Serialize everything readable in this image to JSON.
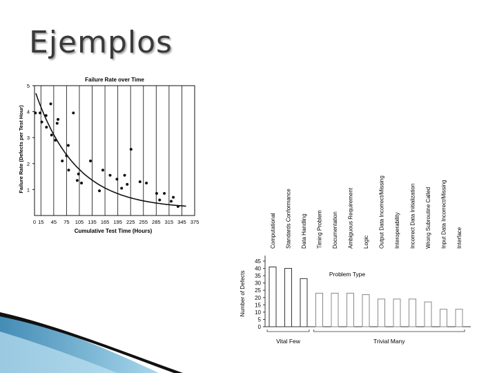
{
  "slide": {
    "title": "Ejemplos"
  },
  "chart_data": [
    {
      "type": "scatter",
      "title": "Failure Rate over Time",
      "xlabel": "Cumulative Test Time (Hours)",
      "ylabel": "Failure Rate (Defects per Test Hour)",
      "x_ticks": [
        "0",
        "15",
        "45",
        "75",
        "105",
        "135",
        "165",
        "195",
        "225",
        "255",
        "285",
        "315",
        "345",
        "375"
      ],
      "y_ticks": [
        "1",
        "2",
        "3",
        "4",
        "5"
      ],
      "xlim": [
        0,
        375
      ],
      "ylim": [
        0,
        5
      ],
      "points": [
        {
          "x": 2,
          "y": 3.95
        },
        {
          "x": 13,
          "y": 3.95
        },
        {
          "x": 17,
          "y": 3.6
        },
        {
          "x": 27,
          "y": 3.85
        },
        {
          "x": 28,
          "y": 3.4
        },
        {
          "x": 38,
          "y": 4.3
        },
        {
          "x": 40,
          "y": 3.1
        },
        {
          "x": 49,
          "y": 2.9
        },
        {
          "x": 53,
          "y": 3.55
        },
        {
          "x": 55,
          "y": 3.7
        },
        {
          "x": 65,
          "y": 2.1
        },
        {
          "x": 75,
          "y": 2.3
        },
        {
          "x": 79,
          "y": 2.7
        },
        {
          "x": 80,
          "y": 1.75
        },
        {
          "x": 91,
          "y": 3.95
        },
        {
          "x": 100,
          "y": 1.35
        },
        {
          "x": 103,
          "y": 1.6
        },
        {
          "x": 110,
          "y": 1.25
        },
        {
          "x": 131,
          "y": 2.1
        },
        {
          "x": 152,
          "y": 0.95
        },
        {
          "x": 160,
          "y": 1.75
        },
        {
          "x": 177,
          "y": 1.55
        },
        {
          "x": 193,
          "y": 1.4
        },
        {
          "x": 204,
          "y": 1.05
        },
        {
          "x": 211,
          "y": 1.55
        },
        {
          "x": 217,
          "y": 1.2
        },
        {
          "x": 226,
          "y": 2.55
        },
        {
          "x": 247,
          "y": 1.3
        },
        {
          "x": 262,
          "y": 1.25
        },
        {
          "x": 286,
          "y": 0.85
        },
        {
          "x": 293,
          "y": 0.6
        },
        {
          "x": 304,
          "y": 0.85
        },
        {
          "x": 320,
          "y": 0.55
        },
        {
          "x": 325,
          "y": 0.7
        },
        {
          "x": 336,
          "y": 0.35
        }
      ],
      "trend": "decreasing exponential curve",
      "vertical_gridlines_at": [
        15,
        45,
        75,
        105,
        135,
        165,
        195,
        225,
        255,
        285,
        315,
        345
      ]
    },
    {
      "type": "bar",
      "title": "Problem Type",
      "ylabel": "Number of Defects",
      "ylim": [
        0,
        45
      ],
      "y_ticks": [
        "0",
        "5",
        "10",
        "15",
        "20",
        "25",
        "30",
        "35",
        "40",
        "45"
      ],
      "categories": [
        "Computational",
        "Standards Conformance",
        "Data Handling",
        "Timing Problem",
        "Documentation",
        "Ambiguous Requirement",
        "Logic",
        "Output Data Incorrect/Missing",
        "Interoperability",
        "Incorrect Data Initialization",
        "Wrong Subroutine Called",
        "Input Data Incorrect/Missing",
        "Interface"
      ],
      "values": [
        41,
        40,
        33,
        23,
        23,
        23,
        22,
        19,
        19,
        19,
        17,
        12,
        12
      ],
      "groups": [
        {
          "label": "Vital Few",
          "categories": 3
        },
        {
          "label": "Trivial Many",
          "categories": 10
        }
      ]
    }
  ]
}
